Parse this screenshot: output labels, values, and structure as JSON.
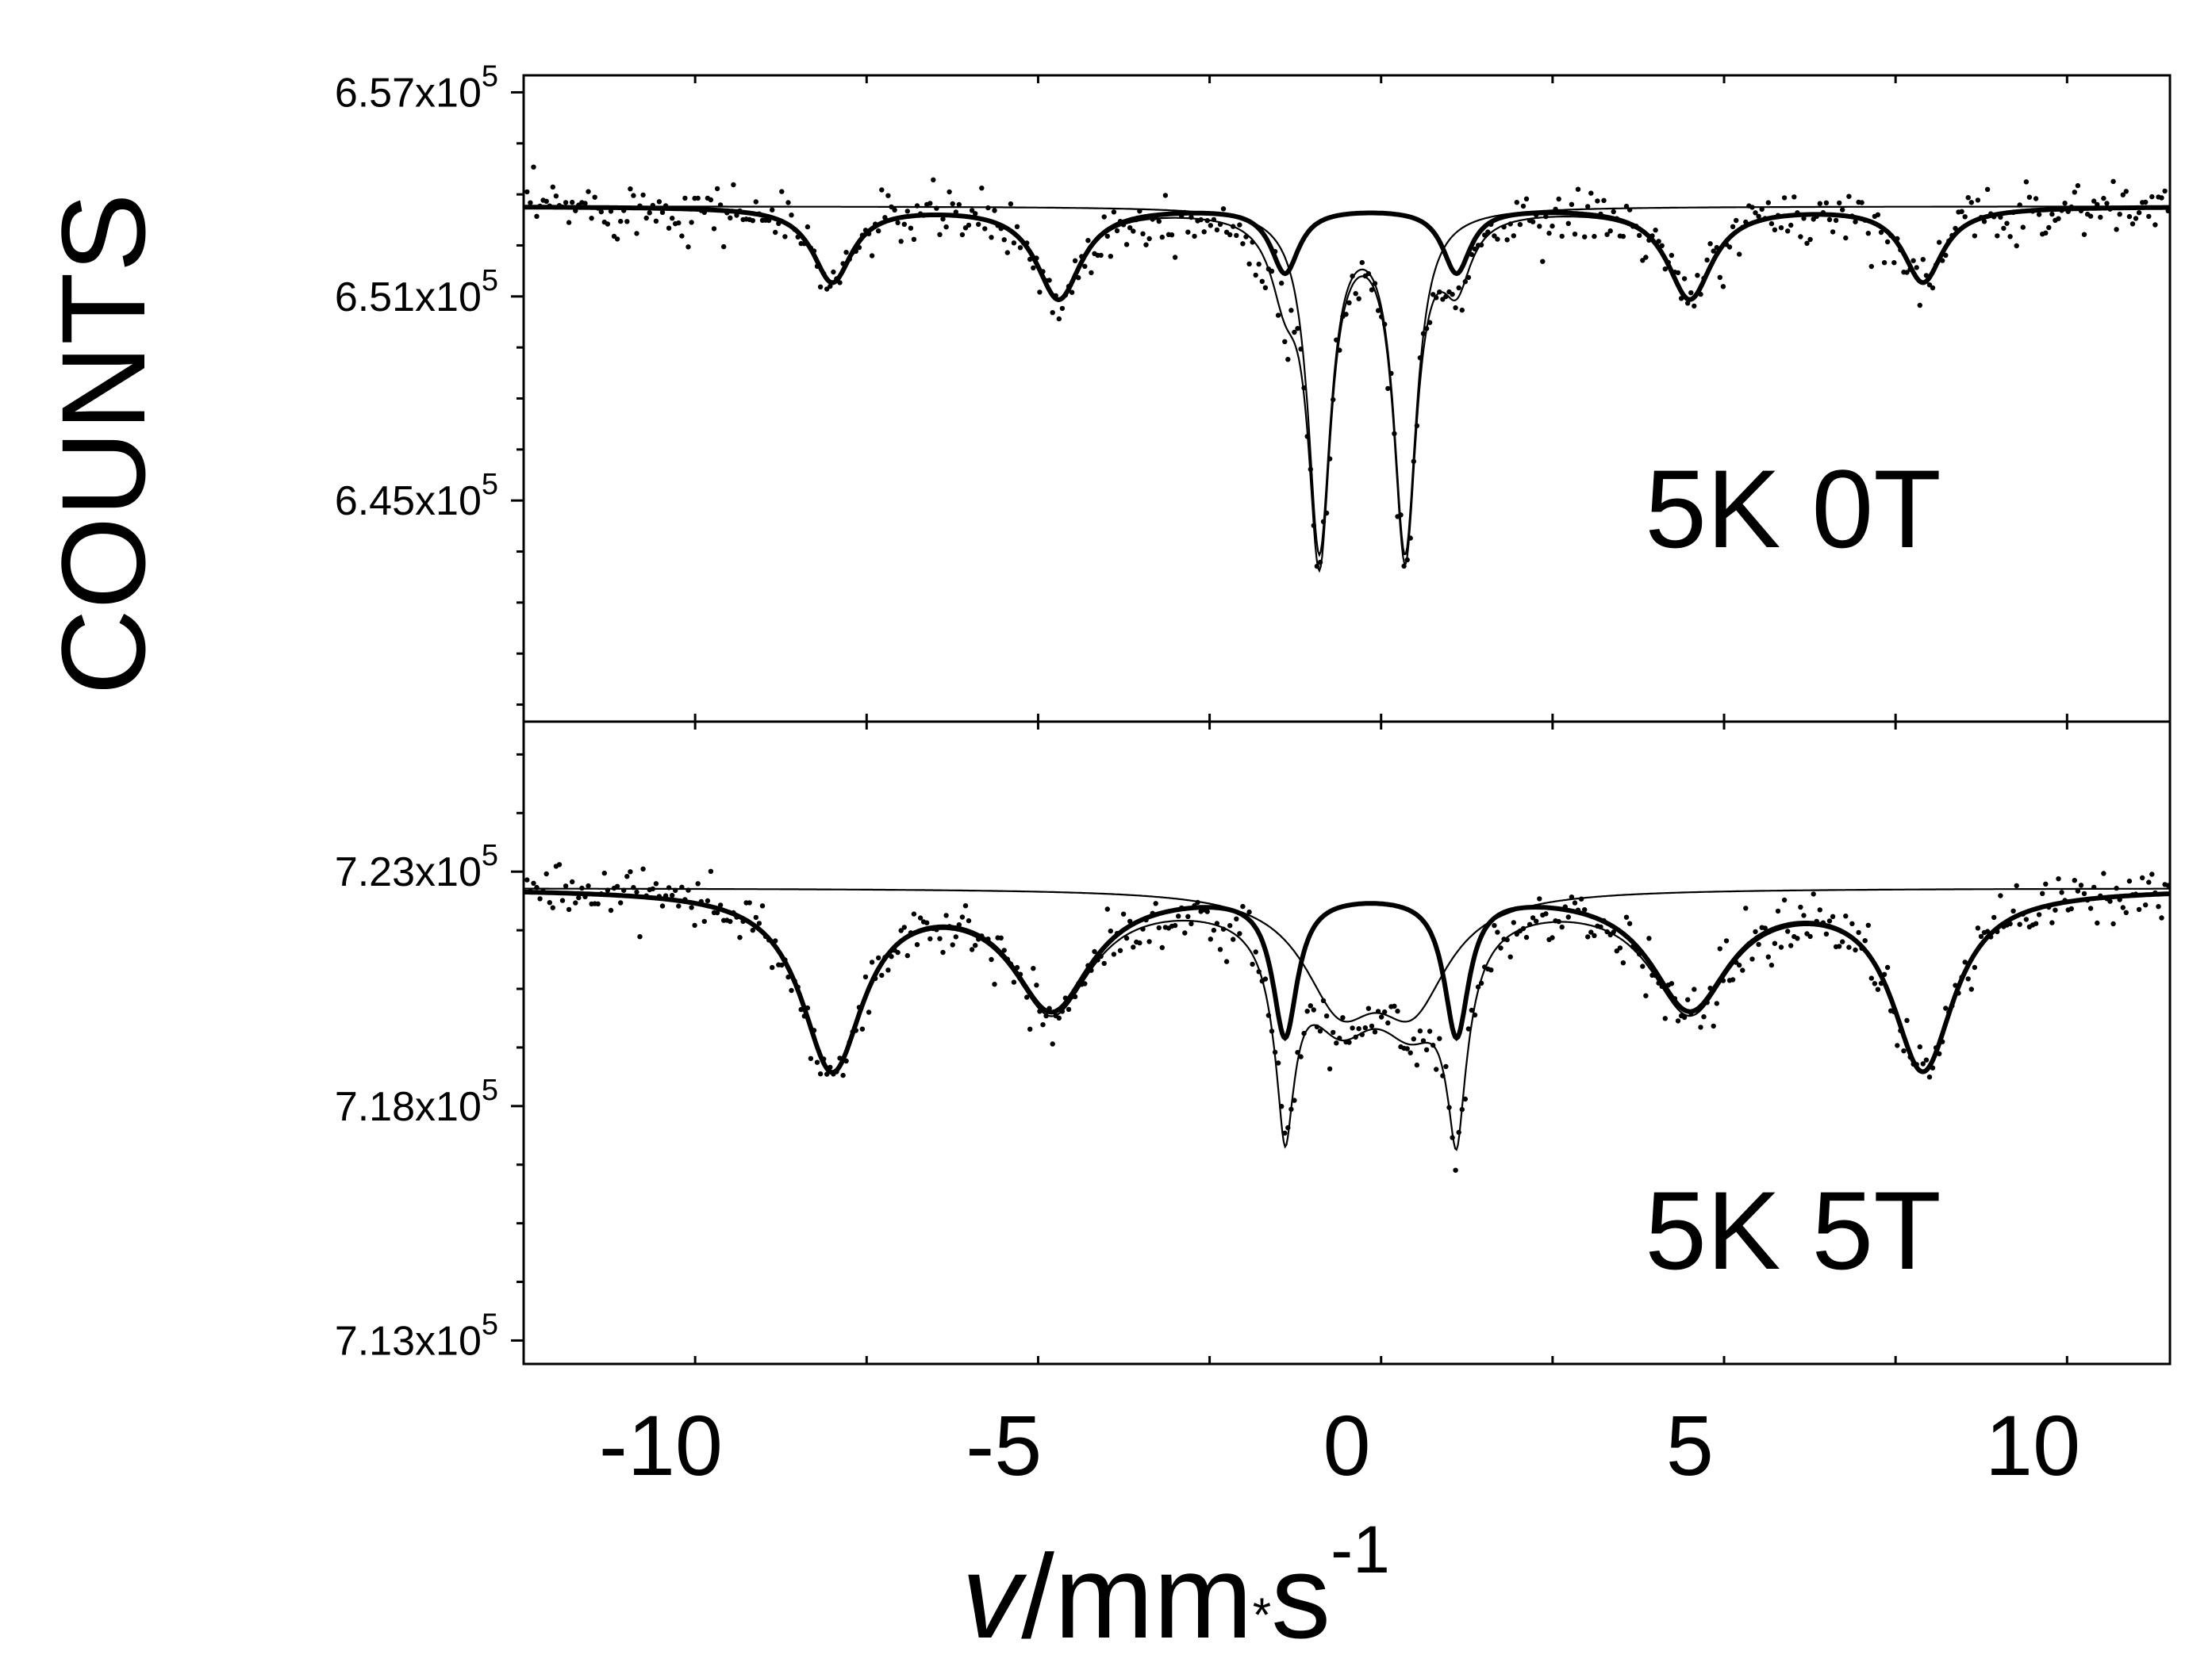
{
  "chart_data": {
    "type": "scatter",
    "xlabel": {
      "var": "v",
      "unit": "/mm",
      "dot": "*",
      "unit2": "s",
      "exp": "-1"
    },
    "ylabel": "COUNTS",
    "xlim": [
      -12,
      12
    ],
    "x_ticks": [
      -10,
      -5,
      0,
      5,
      10
    ],
    "x_tick_labels": [
      "-10",
      "-5",
      "0",
      "5",
      "10"
    ],
    "panels": [
      {
        "id": "top",
        "label": "5K 0T",
        "ylim": [
          6.385,
          6.575
        ],
        "y_ticks": [
          {
            "value": 6.57,
            "mant": "6.57x10",
            "exp": "5"
          },
          {
            "value": 6.51,
            "mant": "6.51x10",
            "exp": "5"
          },
          {
            "value": 6.45,
            "mant": "6.45x10",
            "exp": "5"
          }
        ],
        "baseline": 6.5365,
        "sextet_lines": [
          {
            "pos": -7.5,
            "depth": 0.022,
            "width": 0.35
          },
          {
            "pos": -4.2,
            "depth": 0.027,
            "width": 0.4
          },
          {
            "pos": -0.9,
            "depth": 0.019,
            "width": 0.25
          },
          {
            "pos": 1.6,
            "depth": 0.019,
            "width": 0.25
          },
          {
            "pos": 5.0,
            "depth": 0.027,
            "width": 0.4
          },
          {
            "pos": 8.4,
            "depth": 0.022,
            "width": 0.35
          }
        ],
        "doublet_lines": [
          {
            "pos": -0.4,
            "depth": 0.1,
            "width": 0.2
          },
          {
            "pos": 0.85,
            "depth": 0.1,
            "width": 0.2
          }
        ]
      },
      {
        "id": "bottom",
        "label": "5K 5T",
        "ylim": [
          7.125,
          7.262
        ],
        "y_ticks": [
          {
            "value": 7.23,
            "mant": "7.23x10",
            "exp": "5"
          },
          {
            "value": 7.18,
            "mant": "7.18x10",
            "exp": "5"
          },
          {
            "value": 7.13,
            "mant": "7.13x10",
            "exp": "5"
          }
        ],
        "baseline": 7.2265,
        "sextet_lines": [
          {
            "pos": -7.5,
            "depth": 0.038,
            "width": 0.55
          },
          {
            "pos": -4.3,
            "depth": 0.025,
            "width": 0.7
          },
          {
            "pos": -0.9,
            "depth": 0.03,
            "width": 0.22
          },
          {
            "pos": 1.6,
            "depth": 0.03,
            "width": 0.22
          },
          {
            "pos": 5.0,
            "depth": 0.025,
            "width": 0.7
          },
          {
            "pos": 8.4,
            "depth": 0.038,
            "width": 0.55
          }
        ],
        "broad_lines": [
          {
            "pos": -0.1,
            "depth": 0.022,
            "width": 0.65
          },
          {
            "pos": 0.95,
            "depth": 0.022,
            "width": 0.65
          }
        ],
        "narrow_lines": [
          {
            "pos": -0.9,
            "depth": 0.012,
            "width": 0.1
          },
          {
            "pos": 1.6,
            "depth": 0.01,
            "width": 0.1
          }
        ]
      }
    ]
  }
}
